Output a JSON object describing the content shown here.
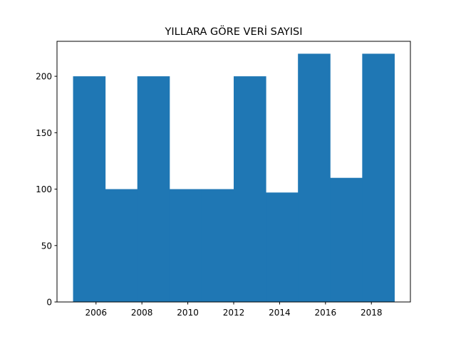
{
  "chart_data": {
    "type": "histogram",
    "title": "YILLARA GÖRE VERİ SAYISI",
    "xlabel": "",
    "ylabel": "",
    "bin_edges": [
      2005.0,
      2006.4,
      2007.8,
      2009.2,
      2010.6,
      2012.0,
      2013.4,
      2014.8,
      2016.2,
      2017.6,
      2019.0
    ],
    "values": [
      200,
      100,
      200,
      100,
      100,
      200,
      97,
      220,
      110,
      220
    ],
    "xlim": [
      2004.3,
      2019.7
    ],
    "ylim": [
      0,
      231
    ],
    "x_ticks": [
      2006,
      2008,
      2010,
      2012,
      2014,
      2016,
      2018
    ],
    "y_ticks": [
      0,
      50,
      100,
      150,
      200
    ],
    "bar_color": "#1f77b4",
    "grid": false,
    "legend": "none"
  }
}
